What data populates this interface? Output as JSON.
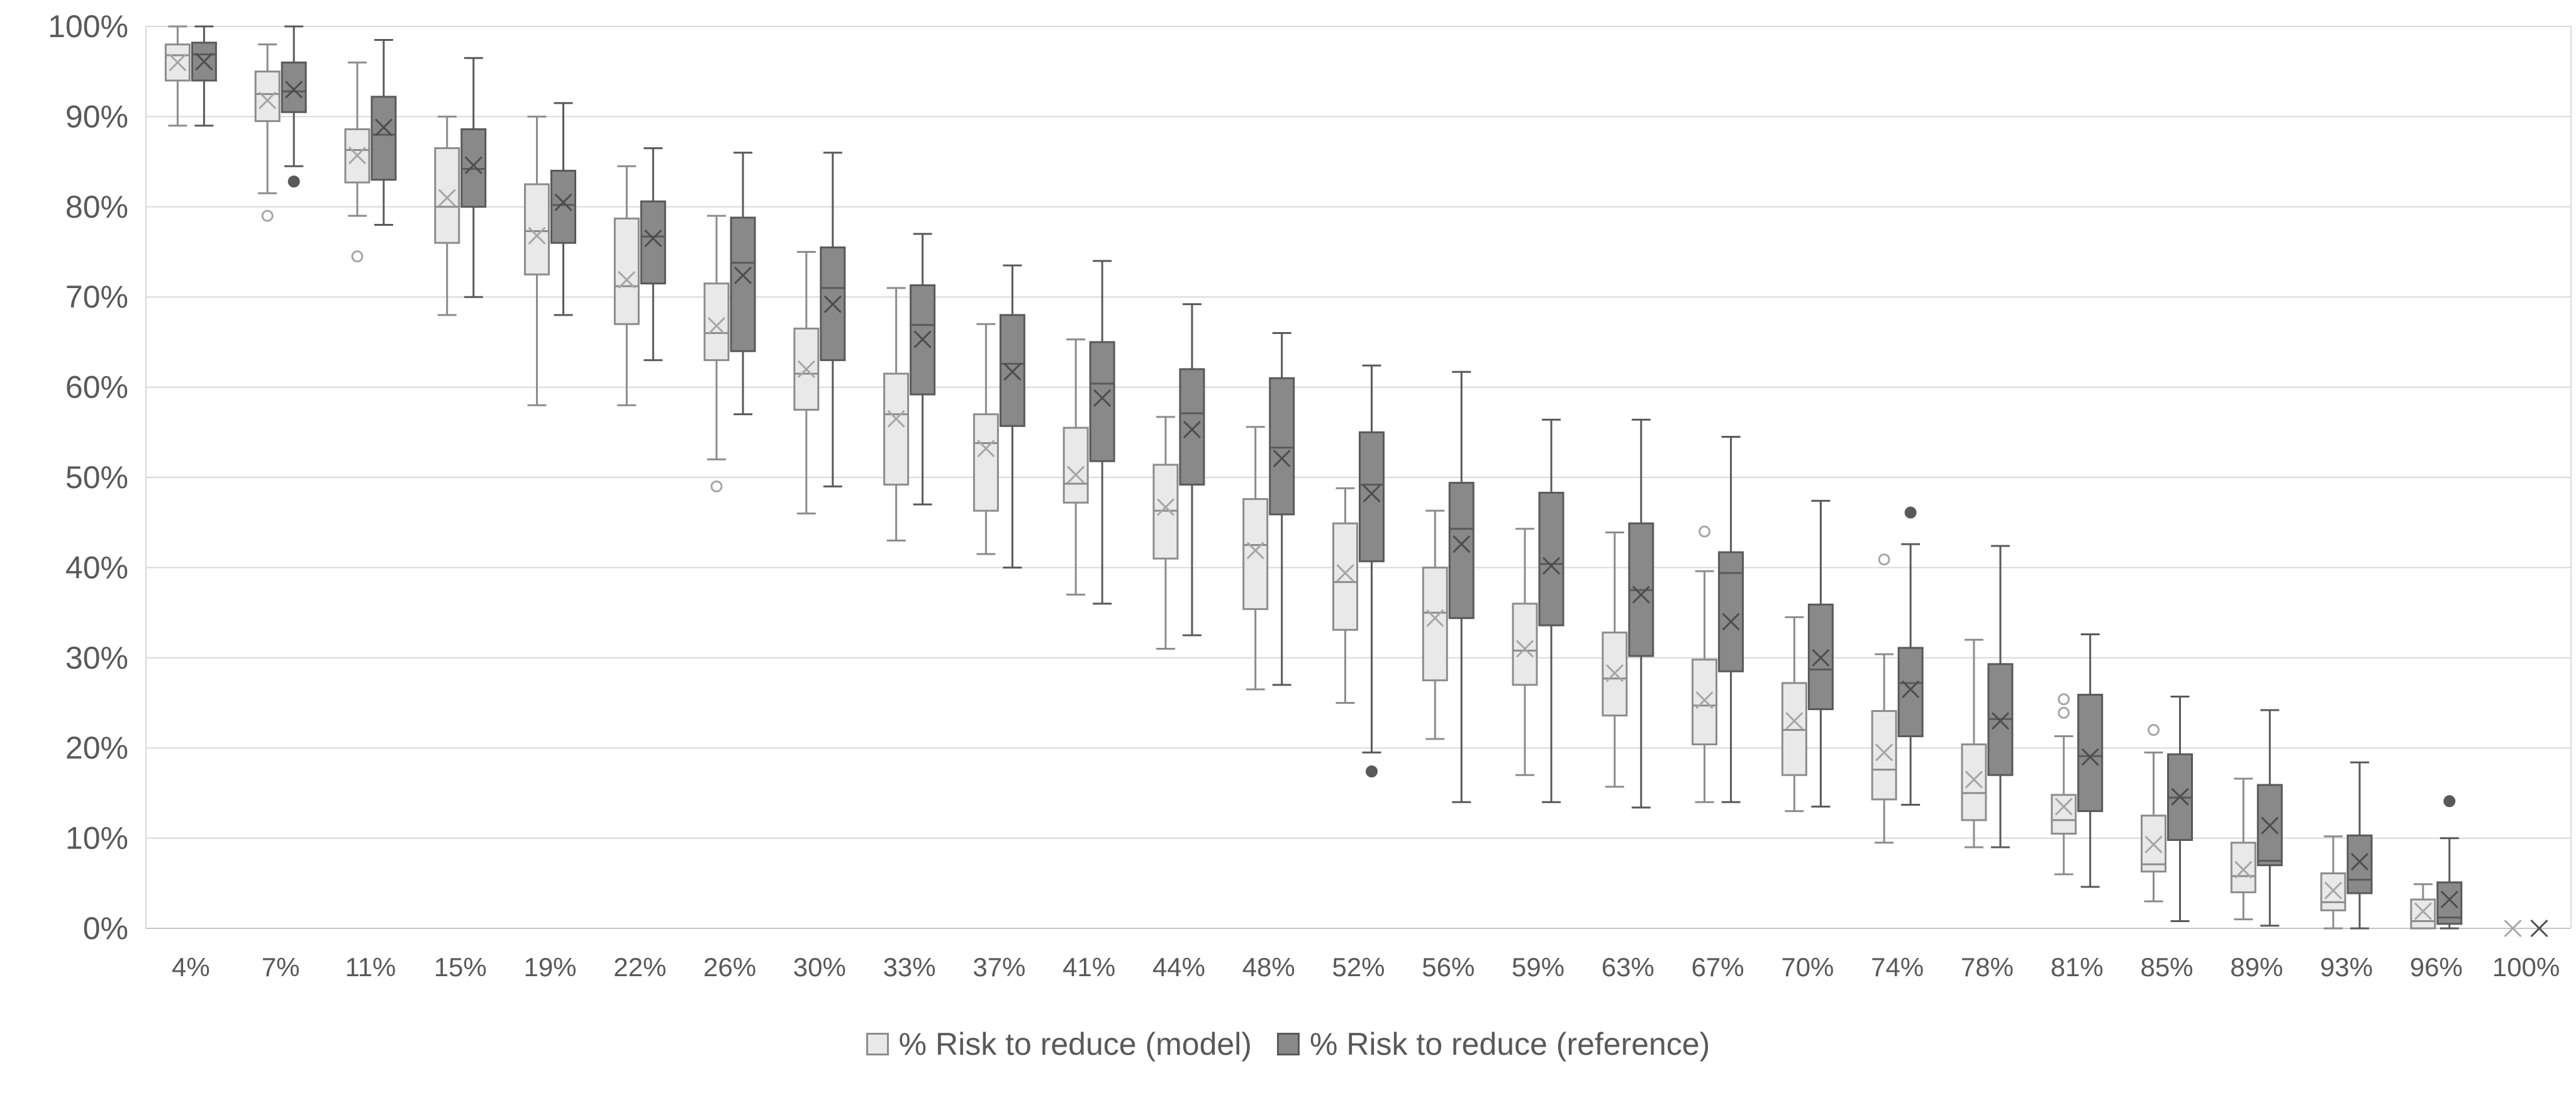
{
  "chart_data": {
    "type": "boxplot",
    "title": "",
    "xlabel": "",
    "ylabel": "",
    "grid": "horizontal",
    "legend_position": "bottom",
    "y_axis": {
      "min": 0,
      "max": 100,
      "step": 10,
      "tick_labels": [
        "0%",
        "10%",
        "20%",
        "30%",
        "40%",
        "50%",
        "60%",
        "70%",
        "80%",
        "90%",
        "100%"
      ]
    },
    "categories": [
      "4%",
      "7%",
      "11%",
      "15%",
      "19%",
      "22%",
      "26%",
      "30%",
      "33%",
      "37%",
      "41%",
      "44%",
      "48%",
      "52%",
      "56%",
      "59%",
      "63%",
      "67%",
      "70%",
      "74%",
      "78%",
      "81%",
      "85%",
      "89%",
      "93%",
      "96%",
      "100%"
    ],
    "series": [
      {
        "name": "% Risk to reduce (model)",
        "fill": "#e9e9e9",
        "stroke": "#8c8c8c",
        "mean_color": "#a6a6a6",
        "outlier_style": "open",
        "boxes": [
          {
            "lo": 89,
            "q1": 94,
            "med": 96.8,
            "q3": 98,
            "hi": 100,
            "mean": 96,
            "out": []
          },
          {
            "lo": 81.5,
            "q1": 89.5,
            "med": 92.5,
            "q3": 95,
            "hi": 98,
            "mean": 91.8,
            "out": [
              79
            ]
          },
          {
            "lo": 79,
            "q1": 82.7,
            "med": 86.3,
            "q3": 88.6,
            "hi": 96,
            "mean": 85.7,
            "out": [
              74.5
            ]
          },
          {
            "lo": 68,
            "q1": 76,
            "med": 80,
            "q3": 86.5,
            "hi": 90,
            "mean": 81,
            "out": []
          },
          {
            "lo": 58,
            "q1": 72.5,
            "med": 77.3,
            "q3": 82.5,
            "hi": 90,
            "mean": 76.8,
            "out": []
          },
          {
            "lo": 58,
            "q1": 67,
            "med": 71.2,
            "q3": 78.7,
            "hi": 84.5,
            "mean": 71.9,
            "out": []
          },
          {
            "lo": 52,
            "q1": 63,
            "med": 66,
            "q3": 71.5,
            "hi": 79,
            "mean": 66.8,
            "out": [
              49
            ]
          },
          {
            "lo": 46,
            "q1": 57.5,
            "med": 61.5,
            "q3": 66.5,
            "hi": 75,
            "mean": 62,
            "out": []
          },
          {
            "lo": 43,
            "q1": 49.2,
            "med": 57,
            "q3": 61.5,
            "hi": 71,
            "mean": 56.5,
            "out": []
          },
          {
            "lo": 41.5,
            "q1": 46.3,
            "med": 53.8,
            "q3": 57,
            "hi": 67,
            "mean": 53.2,
            "out": []
          },
          {
            "lo": 37,
            "q1": 47.2,
            "med": 49.3,
            "q3": 55.5,
            "hi": 65.3,
            "mean": 50.3,
            "out": []
          },
          {
            "lo": 31,
            "q1": 41,
            "med": 46.3,
            "q3": 51.4,
            "hi": 56.7,
            "mean": 46.7,
            "out": []
          },
          {
            "lo": 26.5,
            "q1": 35.4,
            "med": 42.5,
            "q3": 47.6,
            "hi": 55.6,
            "mean": 41.9,
            "out": []
          },
          {
            "lo": 25,
            "q1": 33.1,
            "med": 38.4,
            "q3": 44.9,
            "hi": 48.8,
            "mean": 39.4,
            "out": []
          },
          {
            "lo": 21,
            "q1": 27.5,
            "med": 35,
            "q3": 40,
            "hi": 46.3,
            "mean": 34.4,
            "out": []
          },
          {
            "lo": 17,
            "q1": 27,
            "med": 30.8,
            "q3": 36,
            "hi": 44.3,
            "mean": 31,
            "out": []
          },
          {
            "lo": 15.7,
            "q1": 23.6,
            "med": 27.7,
            "q3": 32.8,
            "hi": 43.9,
            "mean": 28.3,
            "out": []
          },
          {
            "lo": 14,
            "q1": 20.4,
            "med": 24.7,
            "q3": 29.8,
            "hi": 39.6,
            "mean": 25.3,
            "out": [
              44
            ]
          },
          {
            "lo": 13,
            "q1": 17,
            "med": 22,
            "q3": 27.2,
            "hi": 34.5,
            "mean": 23,
            "out": []
          },
          {
            "lo": 9.5,
            "q1": 14.3,
            "med": 17.6,
            "q3": 24.1,
            "hi": 30.4,
            "mean": 19.5,
            "out": [
              40.9
            ]
          },
          {
            "lo": 9,
            "q1": 12,
            "med": 15,
            "q3": 20.4,
            "hi": 32,
            "mean": 16.5,
            "out": []
          },
          {
            "lo": 6,
            "q1": 10.5,
            "med": 12,
            "q3": 14.8,
            "hi": 21.3,
            "mean": 13.5,
            "out": [
              23.9,
              25.4
            ]
          },
          {
            "lo": 3,
            "q1": 6.3,
            "med": 7.1,
            "q3": 12.5,
            "hi": 19.5,
            "mean": 9.3,
            "out": [
              22
            ]
          },
          {
            "lo": 1,
            "q1": 4,
            "med": 5.8,
            "q3": 9.5,
            "hi": 16.6,
            "mean": 6.5,
            "out": []
          },
          {
            "lo": 0,
            "q1": 2,
            "med": 2.9,
            "q3": 6.1,
            "hi": 10.2,
            "mean": 4.2,
            "out": []
          },
          {
            "lo": 0,
            "q1": 0,
            "med": 0.8,
            "q3": 3.2,
            "hi": 4.9,
            "mean": 1.9,
            "out": []
          },
          {
            "lo": 0,
            "q1": 0,
            "med": 0,
            "q3": 0,
            "hi": 0,
            "mean": 0,
            "out": []
          }
        ]
      },
      {
        "name": "% Risk to reduce (reference)",
        "fill": "#898989",
        "stroke": "#595959",
        "mean_color": "#4d4d4d",
        "outlier_style": "filled",
        "boxes": [
          {
            "lo": 89,
            "q1": 94,
            "med": 96.9,
            "q3": 98.2,
            "hi": 100,
            "mean": 96.1,
            "out": []
          },
          {
            "lo": 84.5,
            "q1": 90.5,
            "med": 92.8,
            "q3": 96,
            "hi": 100,
            "mean": 93,
            "out": [
              82.8
            ]
          },
          {
            "lo": 78,
            "q1": 83,
            "med": 88,
            "q3": 92.2,
            "hi": 98.5,
            "mean": 88.8,
            "out": []
          },
          {
            "lo": 70,
            "q1": 80,
            "med": 84.2,
            "q3": 88.6,
            "hi": 96.5,
            "mean": 84.6,
            "out": []
          },
          {
            "lo": 68,
            "q1": 76,
            "med": 80.2,
            "q3": 84,
            "hi": 91.5,
            "mean": 80.5,
            "out": []
          },
          {
            "lo": 63,
            "q1": 71.5,
            "med": 76.7,
            "q3": 80.6,
            "hi": 86.5,
            "mean": 76.5,
            "out": []
          },
          {
            "lo": 57,
            "q1": 64,
            "med": 73.8,
            "q3": 78.8,
            "hi": 86,
            "mean": 72.4,
            "out": []
          },
          {
            "lo": 49,
            "q1": 63,
            "med": 71,
            "q3": 75.5,
            "hi": 86,
            "mean": 69.2,
            "out": []
          },
          {
            "lo": 47,
            "q1": 59.2,
            "med": 66.9,
            "q3": 71.3,
            "hi": 77,
            "mean": 65.3,
            "out": []
          },
          {
            "lo": 40,
            "q1": 55.7,
            "med": 62.6,
            "q3": 68,
            "hi": 73.5,
            "mean": 61.7,
            "out": []
          },
          {
            "lo": 36,
            "q1": 51.8,
            "med": 60.4,
            "q3": 65,
            "hi": 74,
            "mean": 58.8,
            "out": []
          },
          {
            "lo": 32.5,
            "q1": 49.2,
            "med": 57.1,
            "q3": 62,
            "hi": 69.2,
            "mean": 55.3,
            "out": []
          },
          {
            "lo": 27,
            "q1": 45.9,
            "med": 53.3,
            "q3": 61,
            "hi": 66,
            "mean": 52.1,
            "out": []
          },
          {
            "lo": 19.5,
            "q1": 40.7,
            "med": 49.2,
            "q3": 55,
            "hi": 62.4,
            "mean": 48.2,
            "out": [
              17.4
            ]
          },
          {
            "lo": 14,
            "q1": 34.4,
            "med": 44.3,
            "q3": 49.4,
            "hi": 61.7,
            "mean": 42.6,
            "out": []
          },
          {
            "lo": 14,
            "q1": 33.6,
            "med": 40.4,
            "q3": 48.3,
            "hi": 56.4,
            "mean": 40.2,
            "out": []
          },
          {
            "lo": 13.4,
            "q1": 30.2,
            "med": 37.5,
            "q3": 44.9,
            "hi": 56.4,
            "mean": 37,
            "out": []
          },
          {
            "lo": 14,
            "q1": 28.5,
            "med": 39.4,
            "q3": 41.7,
            "hi": 54.5,
            "mean": 34,
            "out": []
          },
          {
            "lo": 13.5,
            "q1": 24.3,
            "med": 28.7,
            "q3": 35.9,
            "hi": 47.4,
            "mean": 30,
            "out": []
          },
          {
            "lo": 13.7,
            "q1": 21.3,
            "med": 27.2,
            "q3": 31.1,
            "hi": 42.6,
            "mean": 26.5,
            "out": [
              46.1
            ]
          },
          {
            "lo": 9,
            "q1": 17,
            "med": 23.2,
            "q3": 29.3,
            "hi": 42.4,
            "mean": 23,
            "out": []
          },
          {
            "lo": 4.6,
            "q1": 13,
            "med": 19.1,
            "q3": 25.9,
            "hi": 32.6,
            "mean": 19,
            "out": []
          },
          {
            "lo": 0.8,
            "q1": 9.8,
            "med": 14.5,
            "q3": 19.3,
            "hi": 25.7,
            "mean": 14.6,
            "out": []
          },
          {
            "lo": 0.3,
            "q1": 7,
            "med": 7.5,
            "q3": 15.9,
            "hi": 24.2,
            "mean": 11.4,
            "out": []
          },
          {
            "lo": 0,
            "q1": 3.9,
            "med": 5.4,
            "q3": 10.3,
            "hi": 18.4,
            "mean": 7.4,
            "out": []
          },
          {
            "lo": 0,
            "q1": 0.5,
            "med": 1.2,
            "q3": 5.1,
            "hi": 10,
            "mean": 3.2,
            "out": [
              14.1
            ]
          },
          {
            "lo": 0,
            "q1": 0,
            "med": 0,
            "q3": 0,
            "hi": 0,
            "mean": 0,
            "out": []
          }
        ]
      }
    ],
    "colors": {
      "grid_line": "#d9d9d9",
      "axis_line": "#c6c6c6",
      "tick_text": "#595959",
      "background": "#ffffff"
    }
  },
  "legend": {
    "model_label": "% Risk to reduce (model)",
    "reference_label": "% Risk to reduce (reference)"
  }
}
